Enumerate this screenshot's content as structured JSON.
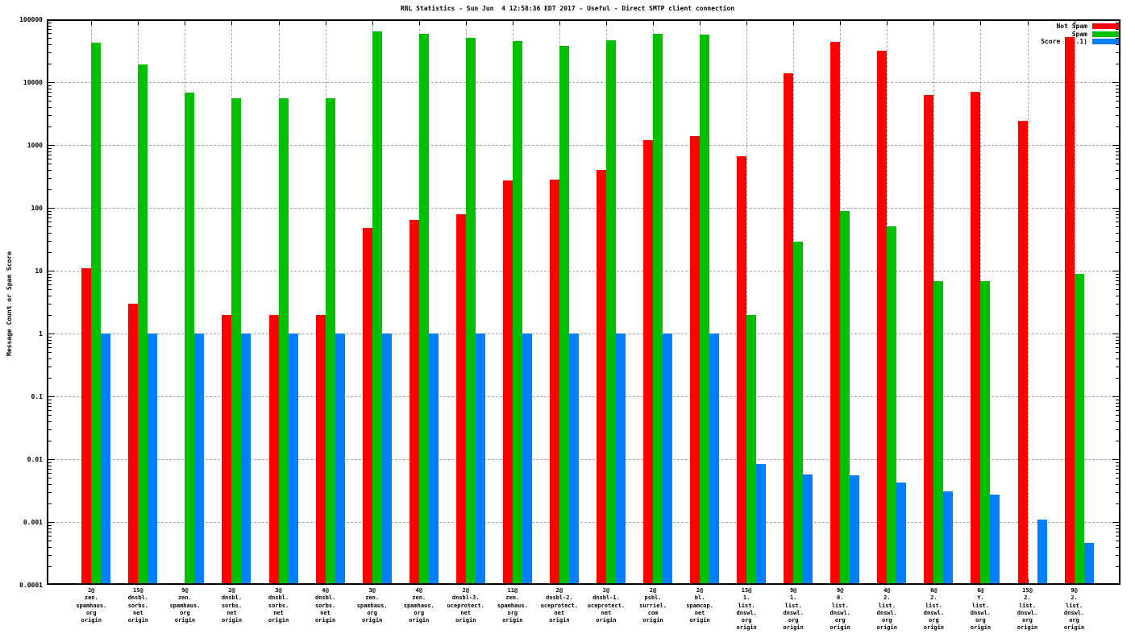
{
  "title": "RBL Statistics - Sun Jun  4 12:58:36 EDT 2017 - Useful - Direct SMTP client connection",
  "y_axis": {
    "label": "Message Count or Spam Score",
    "tick_labels": [
      "100000",
      "10000",
      "1000",
      "100",
      "10",
      "1",
      "0.1",
      "0.01",
      "0.001",
      "0.0001"
    ]
  },
  "legend": {
    "items": [
      {
        "label": "Not Spam",
        "color": "#ff0000"
      },
      {
        "label": "Spam",
        "color": "#00c000"
      },
      {
        "label": "Score (0..1)",
        "color": "#0080ff"
      }
    ]
  },
  "chart_data": {
    "type": "bar",
    "scale": "log",
    "title": "RBL Statistics - Sun Jun  4 12:58:36 EDT 2017 - Useful - Direct SMTP client connection",
    "xlabel": "",
    "ylabel": "Message Count or Spam Score",
    "ylim": [
      0.0001,
      100000
    ],
    "grid": true,
    "legend_position": "top-right",
    "categories": [
      [
        "2@",
        "zen.",
        "spamhaus.",
        "org",
        "origin"
      ],
      [
        "15@",
        "dnsbl.",
        "sorbs.",
        "net",
        "origin"
      ],
      [
        "9@",
        "zen.",
        "spamhaus.",
        "org",
        "origin"
      ],
      [
        "2@",
        "dnsbl.",
        "sorbs.",
        "net",
        "origin"
      ],
      [
        "3@",
        "dnsbl.",
        "sorbs.",
        "net",
        "origin"
      ],
      [
        "4@",
        "dnsbl.",
        "sorbs.",
        "net",
        "origin"
      ],
      [
        "3@",
        "zen.",
        "spamhaus.",
        "org",
        "origin"
      ],
      [
        "4@",
        "zen.",
        "spamhaus.",
        "org",
        "origin"
      ],
      [
        "2@",
        "dnsbl-3.",
        "uceprotect.",
        "net",
        "origin"
      ],
      [
        "11@",
        "zen.",
        "spamhaus.",
        "org",
        "origin"
      ],
      [
        "2@",
        "dnsbl-2.",
        "uceprotect.",
        "net",
        "origin"
      ],
      [
        "2@",
        "dnsbl-1.",
        "uceprotect.",
        "net",
        "origin"
      ],
      [
        "2@",
        "psbl.",
        "surriel.",
        "com",
        "origin"
      ],
      [
        "2@",
        "bl.",
        "spamcop.",
        "net",
        "origin"
      ],
      [
        "15@",
        "1.",
        "list.",
        "dnswl.",
        "org",
        "origin"
      ],
      [
        "9@",
        "1.",
        "list.",
        "dnswl.",
        "org",
        "origin"
      ],
      [
        "9@",
        "0.",
        "list.",
        "dnswl.",
        "org",
        "origin"
      ],
      [
        "4@",
        "2.",
        "list.",
        "dnswl.",
        "org",
        "origin"
      ],
      [
        "6@",
        "2.",
        "list.",
        "dnswl.",
        "org",
        "origin"
      ],
      [
        "6@",
        "Y.",
        "list.",
        "dnswl.",
        "org",
        "origin"
      ],
      [
        "15@",
        "2.",
        "list.",
        "dnswl.",
        "org",
        "origin"
      ],
      [
        "9@",
        "2.",
        "list.",
        "dnswl.",
        "org",
        "origin"
      ]
    ],
    "series": [
      {
        "name": "Not Spam",
        "color": "#ff0000",
        "values": [
          11,
          3,
          null,
          2,
          2,
          2,
          48,
          64,
          79,
          270,
          285,
          400,
          1200,
          1400,
          660,
          14000,
          44000,
          32000,
          6300,
          7000,
          2400,
          52000
        ]
      },
      {
        "name": "Spam",
        "color": "#00c000",
        "values": [
          42000,
          19000,
          6800,
          5500,
          5500,
          5500,
          64000,
          59000,
          50000,
          45000,
          38000,
          46000,
          58000,
          57000,
          2,
          29,
          88,
          50,
          6.8,
          6.8,
          null,
          9
        ]
      },
      {
        "name": "Score (0..1)",
        "color": "#0080ff",
        "values": [
          1,
          1,
          1,
          1,
          1,
          1,
          1,
          1,
          1,
          1,
          1,
          1,
          1,
          1,
          0.0084,
          0.0057,
          0.0055,
          0.0042,
          0.0031,
          0.0027,
          0.0011,
          0.00046
        ]
      }
    ]
  }
}
